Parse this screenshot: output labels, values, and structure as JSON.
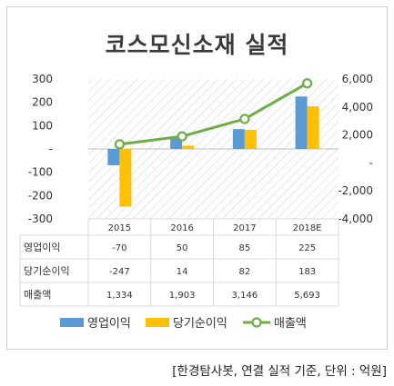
{
  "title": "코스모신소재 실적",
  "source_note": "[한경탐사봇, 연결 실적 기준, 단위 : 억원]",
  "chart_data": {
    "type": "bar",
    "categories": [
      "2015",
      "2016",
      "2017",
      "2018E"
    ],
    "y_left": {
      "ticks": [
        "300",
        "200",
        "100",
        "-",
        "-100",
        "-200",
        "-300"
      ],
      "ylim": [
        -300,
        300
      ]
    },
    "y_right": {
      "ticks": [
        "6,000",
        "4,000",
        "2,000",
        "-",
        "-2,000",
        "-4,000"
      ],
      "ylim": [
        -4000,
        6000
      ]
    },
    "series": [
      {
        "name": "영업이익",
        "type": "bar",
        "axis": "left",
        "color": "#5b9bd5",
        "values": [
          -70,
          50,
          85,
          225
        ],
        "labels": [
          "-70",
          "50",
          "85",
          "225"
        ]
      },
      {
        "name": "당기순이익",
        "type": "bar",
        "axis": "left",
        "color": "#ffc000",
        "values": [
          -247,
          14,
          82,
          183
        ],
        "labels": [
          "-247",
          "14",
          "82",
          "183"
        ]
      },
      {
        "name": "매출액",
        "type": "line",
        "axis": "right",
        "color": "#70ad47",
        "values": [
          1334,
          1903,
          3146,
          5693
        ],
        "labels": [
          "1,334",
          "1,903",
          "3,146",
          "5,693"
        ]
      }
    ],
    "plot_background": "diagonal-hatch",
    "legend_position": "bottom"
  }
}
